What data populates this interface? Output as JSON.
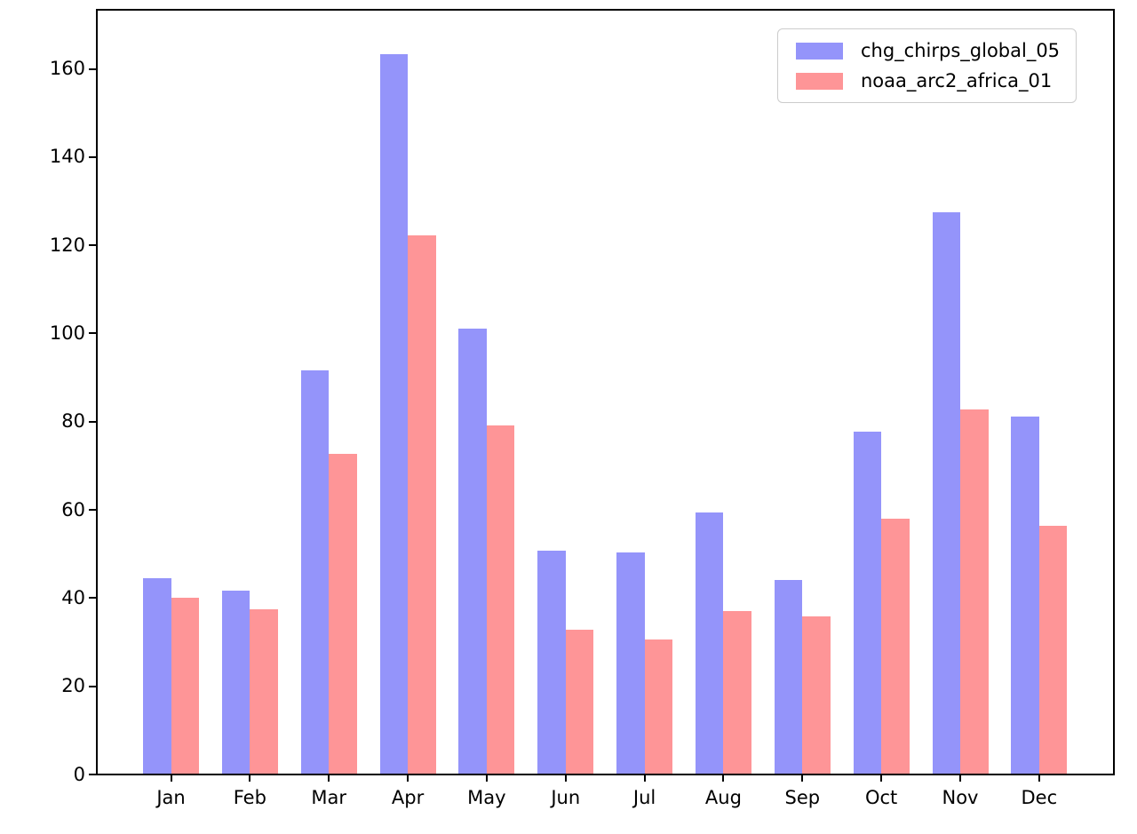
{
  "chart_data": {
    "type": "bar",
    "title": "",
    "xlabel": "",
    "ylabel": "",
    "categories": [
      "Jan",
      "Feb",
      "Mar",
      "Apr",
      "May",
      "Jun",
      "Jul",
      "Aug",
      "Sep",
      "Oct",
      "Nov",
      "Dec"
    ],
    "series": [
      {
        "name": "chg_chirps_global_05",
        "color": "#9494fa",
        "values": [
          44.5,
          41.6,
          91.6,
          163.3,
          101.0,
          50.7,
          50.4,
          59.5,
          44.1,
          77.8,
          127.4,
          81.2
        ]
      },
      {
        "name": "noaa_arc2_africa_01",
        "color": "#fe9597",
        "values": [
          40.0,
          37.5,
          72.7,
          122.3,
          79.2,
          32.9,
          30.6,
          37.0,
          35.9,
          58.1,
          82.7,
          56.4
        ]
      }
    ],
    "ylim": [
      0,
      173.4
    ],
    "yticks": [
      0,
      20,
      40,
      60,
      80,
      100,
      120,
      140,
      160
    ],
    "grid": false,
    "legend_position": "upper-right"
  },
  "colors": {
    "background": "#ffffff",
    "axis": "#000000",
    "tick_label": "#000000",
    "legend_border": "#cccccc"
  }
}
